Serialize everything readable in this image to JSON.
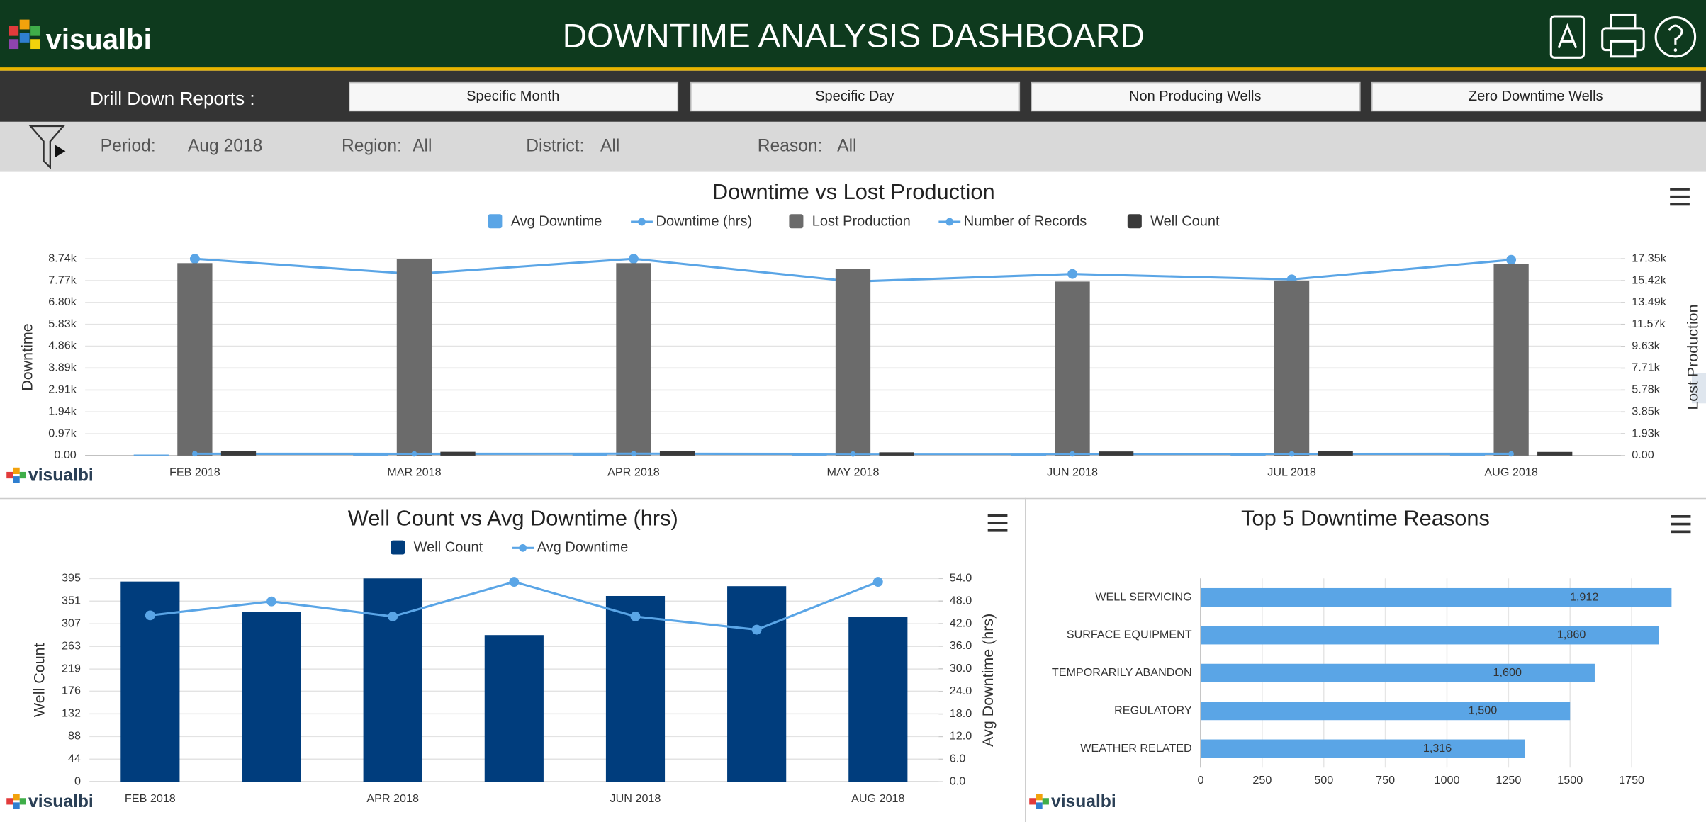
{
  "header": {
    "logo": "visualbi",
    "title": "DOWNTIME ANALYSIS DASHBOARD"
  },
  "drill_down": {
    "label": "Drill Down Reports :",
    "buttons": [
      "Specific Month",
      "Specific Day",
      "Non Producing Wells",
      "Zero Downtime Wells"
    ]
  },
  "filters": [
    {
      "label": "Period:",
      "value": "Aug 2018"
    },
    {
      "label": "Region:",
      "value": "All"
    },
    {
      "label": "District:",
      "value": "All"
    },
    {
      "label": "Reason:",
      "value": "All"
    }
  ],
  "chart_data": [
    {
      "type": "combo",
      "title": "Downtime vs Lost Production",
      "y_label": "Downtime",
      "y2_label": "Lost Production",
      "categories": [
        "FEB 2018",
        "MAR 2018",
        "APR 2018",
        "MAY 2018",
        "JUN 2018",
        "JUL 2018",
        "AUG 2018"
      ],
      "ylim": [
        0,
        8740
      ],
      "yticks": [
        {
          "value": 0,
          "label": "0.00"
        },
        {
          "value": 970,
          "label": "0.97k"
        },
        {
          "value": 1940,
          "label": "1.94k"
        },
        {
          "value": 2910,
          "label": "2.91k"
        },
        {
          "value": 3890,
          "label": "3.89k"
        },
        {
          "value": 4860,
          "label": "4.86k"
        },
        {
          "value": 5830,
          "label": "5.83k"
        },
        {
          "value": 6800,
          "label": "6.80k"
        },
        {
          "value": 7770,
          "label": "7.77k"
        },
        {
          "value": 8740,
          "label": "8.74k"
        }
      ],
      "y2lim": [
        0,
        17350
      ],
      "y2ticks": [
        {
          "value": 0,
          "label": "0.00"
        },
        {
          "value": 1930,
          "label": "1.93k"
        },
        {
          "value": 3850,
          "label": "3.85k"
        },
        {
          "value": 5780,
          "label": "5.78k"
        },
        {
          "value": 7710,
          "label": "7.71k"
        },
        {
          "value": 9630,
          "label": "9.63k"
        },
        {
          "value": 11570,
          "label": "11.57k"
        },
        {
          "value": 13490,
          "label": "13.49k"
        },
        {
          "value": 15420,
          "label": "15.42k"
        },
        {
          "value": 17350,
          "label": "17.35k"
        }
      ],
      "grid": true,
      "series": [
        {
          "name": "Avg Downtime",
          "type": "bar",
          "color": "#5aa5e6",
          "values": [
            44.2,
            47.9,
            43.9,
            53.1,
            43.9,
            40.4,
            53.1
          ]
        },
        {
          "name": "Downtime (hrs)",
          "type": "line",
          "color": "#5aa5e6",
          "values": [
            8740,
            8064,
            8740,
            7726,
            8064,
            7823,
            8692
          ]
        },
        {
          "name": "Lost Production",
          "type": "bar",
          "axis": "y2",
          "color": "#6b6b6b",
          "values": [
            16967,
            17350,
            16967,
            16487,
            15337,
            15433,
            16870
          ]
        },
        {
          "name": "Number of Records",
          "type": "line",
          "axis": "y2",
          "color": "#5aa5e6",
          "values": [
            160,
            150,
            165,
            140,
            145,
            150,
            155
          ]
        },
        {
          "name": "Well Count",
          "type": "bar",
          "axis": "y2",
          "color": "#3a3a3a",
          "values": [
            389,
            330,
            395,
            285,
            361,
            380,
            321
          ]
        }
      ]
    },
    {
      "type": "combo",
      "title": "Well Count vs Avg Downtime (hrs)",
      "y_label": "Well Count",
      "y2_label": "Avg Downtime (hrs)",
      "categories": [
        "FEB 2018",
        null,
        "APR 2018",
        null,
        "JUN 2018",
        null,
        "AUG 2018"
      ],
      "ylim": [
        0,
        395
      ],
      "yticks": [
        0,
        44,
        88,
        132,
        176,
        219,
        263,
        307,
        351,
        395
      ],
      "y2lim": [
        0,
        54
      ],
      "y2ticks": [
        {
          "value": 0,
          "label": "0.0"
        },
        {
          "value": 6,
          "label": "6.0"
        },
        {
          "value": 12,
          "label": "12.0"
        },
        {
          "value": 18,
          "label": "18.0"
        },
        {
          "value": 24,
          "label": "24.0"
        },
        {
          "value": 30,
          "label": "30.0"
        },
        {
          "value": 36,
          "label": "36.0"
        },
        {
          "value": 42,
          "label": "42.0"
        },
        {
          "value": 48,
          "label": "48.0"
        },
        {
          "value": 54,
          "label": "54.0"
        }
      ],
      "grid": true,
      "series": [
        {
          "name": "Well Count",
          "type": "bar",
          "color": "#003d7d",
          "values": [
            389,
            330,
            395,
            285,
            361,
            380,
            321
          ]
        },
        {
          "name": "Avg Downtime",
          "type": "line",
          "axis": "y2",
          "color": "#5aa5e6",
          "values": [
            44.2,
            47.9,
            43.9,
            53.1,
            43.9,
            40.4,
            53.1
          ]
        }
      ]
    },
    {
      "type": "bar",
      "orientation": "horizontal",
      "title": "Top 5 Downtime Reasons",
      "categories": [
        "WELL SERVICING",
        "SURFACE EQUIPMENT",
        "TEMPORARILY ABANDON",
        "REGULATORY",
        "WEATHER RELATED"
      ],
      "values": [
        1912,
        1860,
        1600,
        1500,
        1316
      ],
      "value_labels": [
        "1,912",
        "1,860",
        "1,600",
        "1,500",
        "1,316"
      ],
      "color": "#5aa5e6",
      "xlim": [
        0,
        1950
      ],
      "xticks": [
        0,
        250,
        500,
        750,
        1000,
        1250,
        1500,
        1750
      ],
      "grid": true
    }
  ]
}
